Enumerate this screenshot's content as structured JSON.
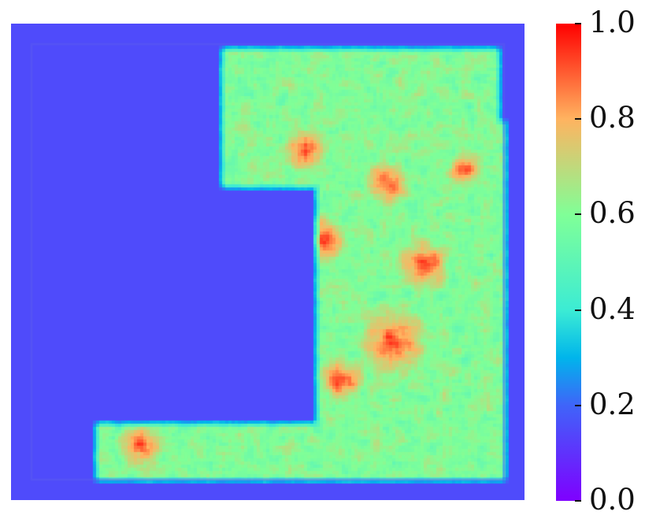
{
  "chart_data": {
    "type": "heatmap",
    "title": "",
    "xlabel": "",
    "ylabel": "",
    "colormap": "rainbow",
    "value_range": [
      0.0,
      1.0
    ],
    "colorbar_ticks": [
      "0.0",
      "0.2",
      "0.4",
      "0.6",
      "0.8",
      "1.0"
    ],
    "colorbar_tick_values": [
      0.0,
      0.2,
      0.4,
      0.6,
      0.8,
      1.0
    ],
    "background_value": 0.15,
    "regions": [
      {
        "name": "top-right block",
        "mean_value": 0.55
      },
      {
        "name": "right column",
        "mean_value": 0.6
      },
      {
        "name": "bottom strip",
        "mean_value": 0.55
      },
      {
        "name": "empty left area",
        "mean_value": 0.13
      }
    ]
  }
}
